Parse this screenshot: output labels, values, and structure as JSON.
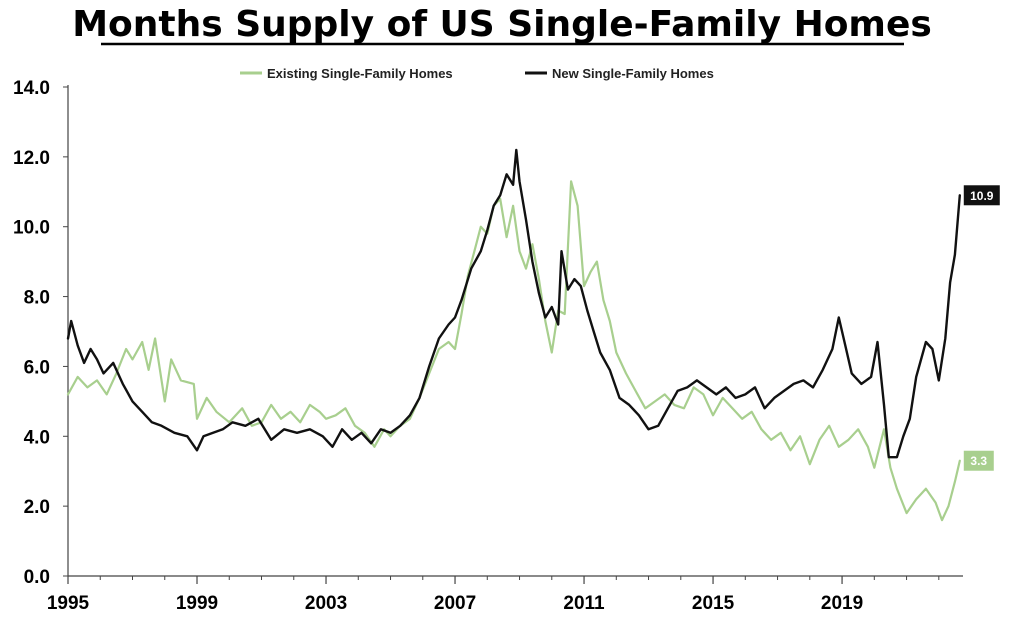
{
  "chart_data": {
    "type": "line",
    "title": "Months Supply of US Single-Family Homes",
    "xlabel": "",
    "ylabel": "",
    "xlim": [
      1995,
      2022.75
    ],
    "ylim": [
      0,
      14
    ],
    "x_ticks": [
      "1995",
      "1999",
      "2003",
      "2007",
      "2011",
      "2015",
      "2019"
    ],
    "y_ticks": [
      "0.0",
      "2.0",
      "4.0",
      "6.0",
      "8.0",
      "10.0",
      "12.0",
      "14.0"
    ],
    "grid": false,
    "legend_position": "top",
    "series": [
      {
        "name": "Existing Single-Family Homes",
        "color": "#a8cf8e",
        "end_label": "3.3",
        "points": [
          [
            1995.0,
            5.2
          ],
          [
            1995.3,
            5.7
          ],
          [
            1995.6,
            5.4
          ],
          [
            1995.9,
            5.6
          ],
          [
            1996.2,
            5.2
          ],
          [
            1996.5,
            5.8
          ],
          [
            1996.8,
            6.5
          ],
          [
            1997.0,
            6.2
          ],
          [
            1997.3,
            6.7
          ],
          [
            1997.5,
            5.9
          ],
          [
            1997.7,
            6.8
          ],
          [
            1998.0,
            5.0
          ],
          [
            1998.2,
            6.2
          ],
          [
            1998.5,
            5.6
          ],
          [
            1998.9,
            5.5
          ],
          [
            1999.0,
            4.5
          ],
          [
            1999.3,
            5.1
          ],
          [
            1999.6,
            4.7
          ],
          [
            2000.0,
            4.4
          ],
          [
            2000.4,
            4.8
          ],
          [
            2000.7,
            4.3
          ],
          [
            2001.0,
            4.4
          ],
          [
            2001.3,
            4.9
          ],
          [
            2001.6,
            4.5
          ],
          [
            2001.9,
            4.7
          ],
          [
            2002.2,
            4.4
          ],
          [
            2002.5,
            4.9
          ],
          [
            2002.8,
            4.7
          ],
          [
            2003.0,
            4.5
          ],
          [
            2003.3,
            4.6
          ],
          [
            2003.6,
            4.8
          ],
          [
            2003.9,
            4.3
          ],
          [
            2004.2,
            4.1
          ],
          [
            2004.5,
            3.7
          ],
          [
            2004.8,
            4.2
          ],
          [
            2005.0,
            4.0
          ],
          [
            2005.3,
            4.3
          ],
          [
            2005.6,
            4.5
          ],
          [
            2005.9,
            5.1
          ],
          [
            2006.2,
            5.8
          ],
          [
            2006.5,
            6.5
          ],
          [
            2006.8,
            6.7
          ],
          [
            2007.0,
            6.5
          ],
          [
            2007.2,
            7.5
          ],
          [
            2007.4,
            8.6
          ],
          [
            2007.6,
            9.3
          ],
          [
            2007.8,
            10.0
          ],
          [
            2008.0,
            9.8
          ],
          [
            2008.2,
            10.6
          ],
          [
            2008.4,
            10.8
          ],
          [
            2008.6,
            9.7
          ],
          [
            2008.8,
            10.6
          ],
          [
            2009.0,
            9.3
          ],
          [
            2009.2,
            8.8
          ],
          [
            2009.4,
            9.5
          ],
          [
            2009.6,
            8.5
          ],
          [
            2009.8,
            7.3
          ],
          [
            2010.0,
            6.4
          ],
          [
            2010.2,
            7.6
          ],
          [
            2010.4,
            7.5
          ],
          [
            2010.6,
            11.3
          ],
          [
            2010.8,
            10.6
          ],
          [
            2011.0,
            8.3
          ],
          [
            2011.2,
            8.7
          ],
          [
            2011.4,
            9.0
          ],
          [
            2011.6,
            7.9
          ],
          [
            2011.8,
            7.3
          ],
          [
            2012.0,
            6.4
          ],
          [
            2012.3,
            5.8
          ],
          [
            2012.6,
            5.3
          ],
          [
            2012.9,
            4.8
          ],
          [
            2013.2,
            5.0
          ],
          [
            2013.5,
            5.2
          ],
          [
            2013.8,
            4.9
          ],
          [
            2014.1,
            4.8
          ],
          [
            2014.4,
            5.4
          ],
          [
            2014.7,
            5.2
          ],
          [
            2015.0,
            4.6
          ],
          [
            2015.3,
            5.1
          ],
          [
            2015.6,
            4.8
          ],
          [
            2015.9,
            4.5
          ],
          [
            2016.2,
            4.7
          ],
          [
            2016.5,
            4.2
          ],
          [
            2016.8,
            3.9
          ],
          [
            2017.1,
            4.1
          ],
          [
            2017.4,
            3.6
          ],
          [
            2017.7,
            4.0
          ],
          [
            2018.0,
            3.2
          ],
          [
            2018.3,
            3.9
          ],
          [
            2018.6,
            4.3
          ],
          [
            2018.9,
            3.7
          ],
          [
            2019.2,
            3.9
          ],
          [
            2019.5,
            4.2
          ],
          [
            2019.8,
            3.7
          ],
          [
            2020.0,
            3.1
          ],
          [
            2020.3,
            4.2
          ],
          [
            2020.5,
            3.1
          ],
          [
            2020.7,
            2.5
          ],
          [
            2021.0,
            1.8
          ],
          [
            2021.3,
            2.2
          ],
          [
            2021.6,
            2.5
          ],
          [
            2021.9,
            2.1
          ],
          [
            2022.1,
            1.6
          ],
          [
            2022.3,
            2.0
          ],
          [
            2022.5,
            2.7
          ],
          [
            2022.65,
            3.3
          ]
        ]
      },
      {
        "name": "New Single-Family Homes",
        "color": "#111111",
        "end_label": "10.9",
        "points": [
          [
            1995.0,
            6.8
          ],
          [
            1995.1,
            7.3
          ],
          [
            1995.3,
            6.6
          ],
          [
            1995.5,
            6.1
          ],
          [
            1995.7,
            6.5
          ],
          [
            1995.9,
            6.2
          ],
          [
            1996.1,
            5.8
          ],
          [
            1996.4,
            6.1
          ],
          [
            1996.7,
            5.5
          ],
          [
            1997.0,
            5.0
          ],
          [
            1997.3,
            4.7
          ],
          [
            1997.6,
            4.4
          ],
          [
            1997.9,
            4.3
          ],
          [
            1998.3,
            4.1
          ],
          [
            1998.7,
            4.0
          ],
          [
            1999.0,
            3.6
          ],
          [
            1999.2,
            4.0
          ],
          [
            1999.5,
            4.1
          ],
          [
            1999.8,
            4.2
          ],
          [
            2000.1,
            4.4
          ],
          [
            2000.5,
            4.3
          ],
          [
            2000.9,
            4.5
          ],
          [
            2001.3,
            3.9
          ],
          [
            2001.7,
            4.2
          ],
          [
            2002.1,
            4.1
          ],
          [
            2002.5,
            4.2
          ],
          [
            2002.9,
            4.0
          ],
          [
            2003.2,
            3.7
          ],
          [
            2003.5,
            4.2
          ],
          [
            2003.8,
            3.9
          ],
          [
            2004.1,
            4.1
          ],
          [
            2004.4,
            3.8
          ],
          [
            2004.7,
            4.2
          ],
          [
            2005.0,
            4.1
          ],
          [
            2005.3,
            4.3
          ],
          [
            2005.6,
            4.6
          ],
          [
            2005.9,
            5.1
          ],
          [
            2006.2,
            6.0
          ],
          [
            2006.5,
            6.8
          ],
          [
            2006.8,
            7.2
          ],
          [
            2007.0,
            7.4
          ],
          [
            2007.2,
            7.9
          ],
          [
            2007.5,
            8.8
          ],
          [
            2007.8,
            9.3
          ],
          [
            2008.0,
            9.9
          ],
          [
            2008.2,
            10.6
          ],
          [
            2008.4,
            10.9
          ],
          [
            2008.6,
            11.5
          ],
          [
            2008.8,
            11.2
          ],
          [
            2008.9,
            12.2
          ],
          [
            2009.0,
            11.3
          ],
          [
            2009.2,
            10.2
          ],
          [
            2009.4,
            9.0
          ],
          [
            2009.6,
            8.1
          ],
          [
            2009.8,
            7.4
          ],
          [
            2010.0,
            7.7
          ],
          [
            2010.2,
            7.2
          ],
          [
            2010.3,
            9.3
          ],
          [
            2010.5,
            8.2
          ],
          [
            2010.7,
            8.5
          ],
          [
            2010.9,
            8.3
          ],
          [
            2011.1,
            7.6
          ],
          [
            2011.3,
            7.0
          ],
          [
            2011.5,
            6.4
          ],
          [
            2011.8,
            5.9
          ],
          [
            2012.1,
            5.1
          ],
          [
            2012.4,
            4.9
          ],
          [
            2012.7,
            4.6
          ],
          [
            2013.0,
            4.2
          ],
          [
            2013.3,
            4.3
          ],
          [
            2013.6,
            4.8
          ],
          [
            2013.9,
            5.3
          ],
          [
            2014.2,
            5.4
          ],
          [
            2014.5,
            5.6
          ],
          [
            2014.8,
            5.4
          ],
          [
            2015.1,
            5.2
          ],
          [
            2015.4,
            5.4
          ],
          [
            2015.7,
            5.1
          ],
          [
            2016.0,
            5.2
          ],
          [
            2016.3,
            5.4
          ],
          [
            2016.6,
            4.8
          ],
          [
            2016.9,
            5.1
          ],
          [
            2017.2,
            5.3
          ],
          [
            2017.5,
            5.5
          ],
          [
            2017.8,
            5.6
          ],
          [
            2018.1,
            5.4
          ],
          [
            2018.4,
            5.9
          ],
          [
            2018.7,
            6.5
          ],
          [
            2018.9,
            7.4
          ],
          [
            2019.1,
            6.6
          ],
          [
            2019.3,
            5.8
          ],
          [
            2019.6,
            5.5
          ],
          [
            2019.9,
            5.7
          ],
          [
            2020.1,
            6.7
          ],
          [
            2020.3,
            4.9
          ],
          [
            2020.45,
            3.4
          ],
          [
            2020.7,
            3.4
          ],
          [
            2020.9,
            4.0
          ],
          [
            2021.1,
            4.5
          ],
          [
            2021.3,
            5.7
          ],
          [
            2021.6,
            6.7
          ],
          [
            2021.8,
            6.5
          ],
          [
            2022.0,
            5.6
          ],
          [
            2022.2,
            6.8
          ],
          [
            2022.35,
            8.4
          ],
          [
            2022.5,
            9.2
          ],
          [
            2022.65,
            10.9
          ]
        ]
      }
    ]
  }
}
